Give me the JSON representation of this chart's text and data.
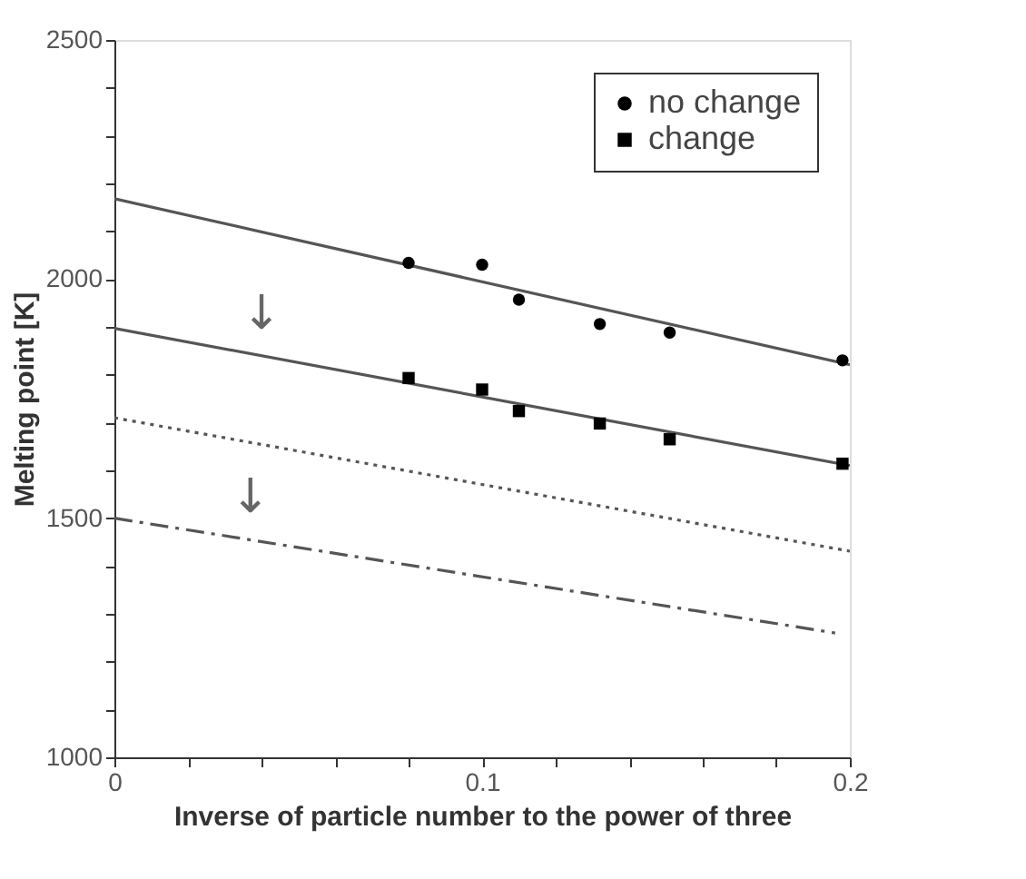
{
  "chart_data": {
    "type": "scatter",
    "xlabel": "Inverse of particle number to the power of three",
    "ylabel": "Melting point [K]",
    "xlim": [
      0,
      0.2
    ],
    "ylim": [
      1000,
      2500
    ],
    "xticks": [
      0,
      {
        "value": 0.02,
        "label": null
      },
      {
        "value": 0.04,
        "label": null
      },
      {
        "value": 0.06,
        "label": null
      },
      {
        "value": 0.08,
        "label": null
      },
      0.1,
      {
        "value": 0.12,
        "label": null
      },
      {
        "value": 0.14,
        "label": null
      },
      {
        "value": 0.16,
        "label": null
      },
      {
        "value": 0.18,
        "label": null
      },
      0.2
    ],
    "yticks": [
      1000,
      {
        "value": 1100,
        "label": null
      },
      {
        "value": 1200,
        "label": null
      },
      {
        "value": 1300,
        "label": null
      },
      {
        "value": 1400,
        "label": null
      },
      1500,
      {
        "value": 1600,
        "label": null
      },
      {
        "value": 1700,
        "label": null
      },
      {
        "value": 1800,
        "label": null
      },
      {
        "value": 1900,
        "label": null
      },
      2000,
      {
        "value": 2100,
        "label": null
      },
      {
        "value": 2200,
        "label": null
      },
      {
        "value": 2300,
        "label": null
      },
      {
        "value": 2400,
        "label": null
      },
      2500
    ],
    "grid": false,
    "legend": "top right",
    "series": [
      {
        "name": "no change",
        "marker": "circle",
        "color": "#000000",
        "x": [
          0.08,
          0.1,
          0.11,
          0.132,
          0.151,
          0.198
        ],
        "values": [
          2034,
          2030,
          1957,
          1906,
          1888,
          1830
        ]
      },
      {
        "name": "change",
        "marker": "square",
        "color": "#000000",
        "x": [
          0.08,
          0.1,
          0.11,
          0.132,
          0.151,
          0.198
        ],
        "values": [
          1793,
          1769,
          1724,
          1698,
          1665,
          1614
        ]
      },
      {
        "type": "line",
        "line_style": "solid",
        "color": "#555555",
        "x": [
          0,
          0.2
        ],
        "values": [
          2168,
          1821
        ]
      },
      {
        "type": "line",
        "line_style": "solid",
        "color": "#555555",
        "x": [
          0,
          0.2
        ],
        "values": [
          1897,
          1610
        ]
      },
      {
        "type": "line",
        "line_style": "dotted",
        "color": "#555555",
        "x": [
          0,
          0.2
        ],
        "values": [
          1710,
          1431
        ]
      },
      {
        "type": "line",
        "line_style": "dashed",
        "color": "#555555",
        "x": [
          0,
          0.196
        ],
        "values": [
          1500,
          1260
        ]
      }
    ],
    "annotations": [
      {
        "text": "↓",
        "x": 0.04,
        "y": 1840
      },
      {
        "text": "↓",
        "x": 0.037,
        "y": 1455
      }
    ]
  }
}
